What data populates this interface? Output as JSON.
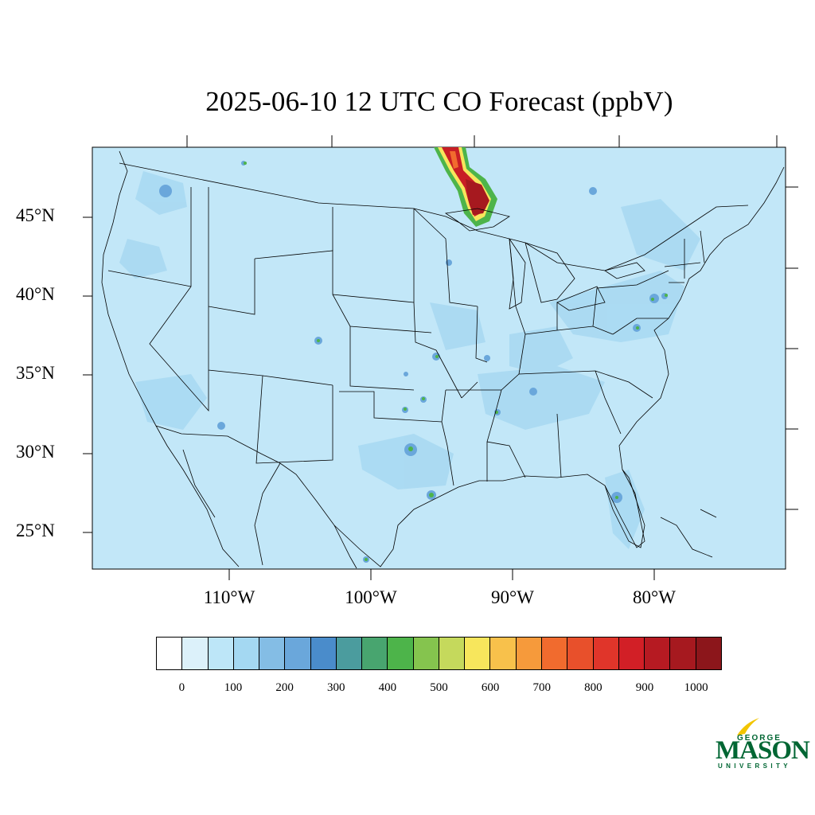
{
  "title": "2025-06-10 12 UTC CO Forecast (ppbV)",
  "map": {
    "latitude_labels": [
      "45°N",
      "40°N",
      "35°N",
      "30°N",
      "25°N"
    ],
    "longitude_labels": [
      "110°W",
      "100°W",
      "90°W",
      "80°W"
    ],
    "background_color": "#c2e7f8"
  },
  "colorbar": {
    "tick_labels": [
      "0",
      "100",
      "200",
      "300",
      "400",
      "500",
      "600",
      "700",
      "800",
      "900",
      "1000"
    ],
    "colors": [
      "#ffffff",
      "#dcf1fa",
      "#bde6f8",
      "#a4d8f2",
      "#84bde5",
      "#6aa7db",
      "#4a8ccb",
      "#4b9c9e",
      "#48a56f",
      "#4db44a",
      "#85c44e",
      "#c5d95c",
      "#f7e65c",
      "#f8c14b",
      "#f69a3b",
      "#f16b2e",
      "#e8502b",
      "#e0352a",
      "#d21f26",
      "#b61a22",
      "#a6191f",
      "#8c161b"
    ]
  },
  "logo": {
    "line1": "GEORGE",
    "line2": "MASON",
    "line3": "UNIVERSITY"
  }
}
